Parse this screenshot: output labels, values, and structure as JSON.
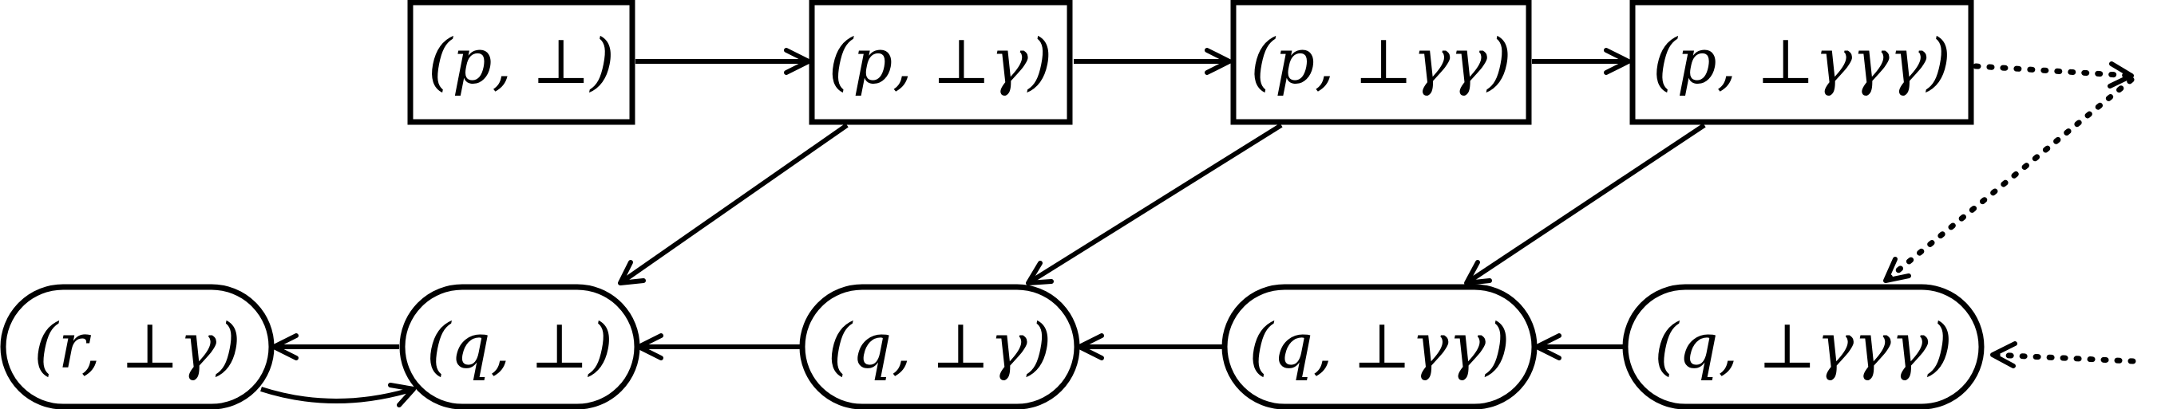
{
  "diagram": {
    "colors": {
      "stroke": "#000000",
      "fill": "#ffffff",
      "background": "#ffffff"
    },
    "nodes": [
      {
        "id": "p-bot",
        "shape": "rect",
        "label": "(p, ⊥)"
      },
      {
        "id": "p-bot-g",
        "shape": "rect",
        "label": "(p, ⊥γ)"
      },
      {
        "id": "p-bot-gg",
        "shape": "rect",
        "label": "(p, ⊥γγ)"
      },
      {
        "id": "p-bot-ggg",
        "shape": "rect",
        "label": "(p, ⊥γγγ)"
      },
      {
        "id": "r-bot-g",
        "shape": "rounded",
        "label": "(r, ⊥γ)"
      },
      {
        "id": "q-bot",
        "shape": "rounded",
        "label": "(q, ⊥)"
      },
      {
        "id": "q-bot-g",
        "shape": "rounded",
        "label": "(q, ⊥γ)"
      },
      {
        "id": "q-bot-gg",
        "shape": "rounded",
        "label": "(q, ⊥γγ)"
      },
      {
        "id": "q-bot-ggg",
        "shape": "rounded",
        "label": "(q, ⊥γγγ)"
      }
    ],
    "edges": [
      {
        "from": "p-bot",
        "to": "p-bot-g",
        "style": "solid"
      },
      {
        "from": "p-bot-g",
        "to": "p-bot-gg",
        "style": "solid"
      },
      {
        "from": "p-bot-gg",
        "to": "p-bot-ggg",
        "style": "solid"
      },
      {
        "from": "p-bot-ggg",
        "to": "continuation-top",
        "style": "dotted"
      },
      {
        "from": "continuation-top",
        "to": "q-bot-ggg",
        "style": "dotted"
      },
      {
        "from": "p-bot-g",
        "to": "q-bot",
        "style": "solid"
      },
      {
        "from": "p-bot-gg",
        "to": "q-bot-g",
        "style": "solid"
      },
      {
        "from": "p-bot-ggg",
        "to": "q-bot-gg",
        "style": "solid"
      },
      {
        "from": "q-bot",
        "to": "r-bot-g",
        "style": "solid"
      },
      {
        "from": "r-bot-g",
        "to": "q-bot",
        "style": "solid",
        "curved": true
      },
      {
        "from": "q-bot-g",
        "to": "q-bot",
        "style": "solid"
      },
      {
        "from": "q-bot-gg",
        "to": "q-bot-g",
        "style": "solid"
      },
      {
        "from": "q-bot-ggg",
        "to": "q-bot-gg",
        "style": "solid"
      },
      {
        "from": "continuation-bottom",
        "to": "q-bot-ggg",
        "style": "dotted"
      }
    ]
  }
}
